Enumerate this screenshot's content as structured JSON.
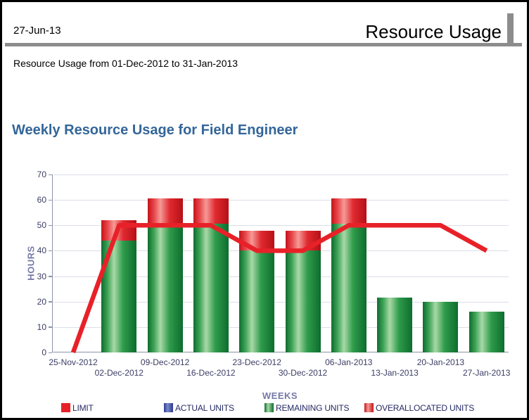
{
  "header": {
    "date": "27-Jun-13",
    "title": "Resource Usage",
    "subtitle": "Resource Usage from 01-Dec-2012 to 31-Jan-2013"
  },
  "chart_data": {
    "type": "bar",
    "subtype": "stacked cylinder bars with step limit line overlay",
    "title": "Weekly Resource Usage for Field Engineer",
    "xlabel": "WEEKS",
    "ylabel": "HOURS",
    "ylim": [
      0,
      70
    ],
    "y_ticks": [
      0,
      10,
      20,
      30,
      40,
      50,
      60,
      70
    ],
    "grid": "horizontal",
    "legend_position": "bottom",
    "categories": [
      "25-Nov-2012",
      "02-Dec-2012",
      "09-Dec-2012",
      "16-Dec-2012",
      "23-Dec-2012",
      "30-Dec-2012",
      "06-Jan-2013",
      "13-Jan-2013",
      "20-Jan-2013",
      "27-Jan-2013"
    ],
    "series": [
      {
        "name": "LIMIT",
        "type": "line",
        "color": "#e82128",
        "values": [
          0,
          50,
          50,
          50,
          40,
          40,
          50,
          50,
          50,
          40
        ]
      },
      {
        "name": "ACTUAL UNITS",
        "type": "bar",
        "color": "#2b3a8f",
        "values": [
          0,
          0,
          0,
          0,
          0,
          0,
          0,
          0,
          0,
          0
        ]
      },
      {
        "name": "REMAINING UNITS",
        "type": "bar",
        "color": "#1d9440",
        "values": [
          0,
          44,
          49.5,
          50.5,
          40,
          40,
          50.5,
          21.5,
          20,
          16
        ]
      },
      {
        "name": "OVERALLOCATED UNITS",
        "type": "bar",
        "color": "#e02a30",
        "values": [
          0,
          8,
          11,
          10,
          8,
          8,
          10,
          0,
          0,
          0
        ]
      }
    ],
    "colors": {
      "title_blue": "#336699",
      "axis_line": "#8e93a9",
      "gridline": "#dcdee9",
      "tick_text": "#3a3d63",
      "axis_label_text": "#7579a8",
      "legend_text": "#262a64",
      "limit_line": "#e82128",
      "header_rule_gray": "#8c8c8c"
    }
  }
}
